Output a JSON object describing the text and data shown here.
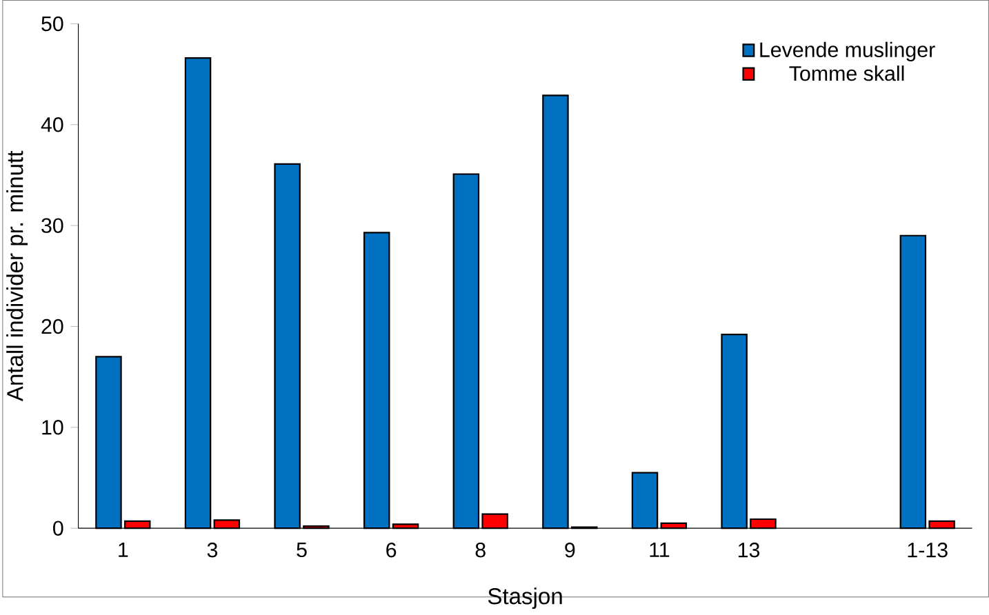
{
  "chart_data": {
    "type": "bar",
    "xlabel": "Stasjon",
    "ylabel": "Antall individer pr. minutt",
    "categories": [
      "1",
      "3",
      "5",
      "6",
      "8",
      "9",
      "11",
      "13",
      null,
      "1-13"
    ],
    "series": [
      {
        "name": "Levende muslinger",
        "color": "#0070c0",
        "values": [
          17.0,
          46.6,
          36.1,
          29.3,
          35.1,
          42.9,
          5.5,
          19.2,
          null,
          29.0
        ]
      },
      {
        "name": "Tomme skall",
        "color": "#ff0000",
        "values": [
          0.7,
          0.8,
          0.2,
          0.4,
          1.4,
          0.1,
          0.5,
          0.9,
          null,
          0.7
        ]
      }
    ],
    "ylim": [
      0,
      50
    ],
    "yticks": [
      0,
      10,
      20,
      30,
      40,
      50
    ],
    "grid": false,
    "legend": "top right"
  }
}
